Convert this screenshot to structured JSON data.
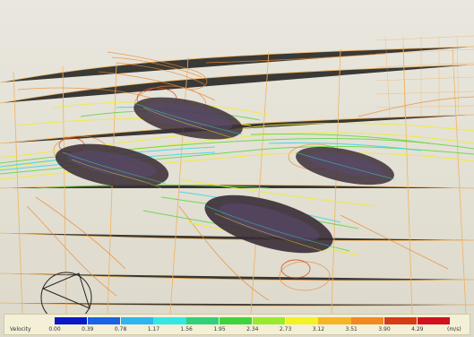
{
  "legend": {
    "title": "Velocity",
    "unit": "(m/s)",
    "ticks": [
      "0.00",
      "0.39",
      "0.78",
      "1.17",
      "1.56",
      "1.95",
      "2.34",
      "2.73",
      "3.12",
      "3.51",
      "3.90",
      "4.29"
    ],
    "colors": [
      "#0a18c8",
      "#1a63e6",
      "#2fb5ef",
      "#35e7e2",
      "#31d07a",
      "#3fd43a",
      "#97ea2f",
      "#f2f224",
      "#f5b526",
      "#ee8a21",
      "#d53b15",
      "#d3101d"
    ]
  },
  "scene": {
    "description_icon": "view-orientation-gizmo-icon"
  }
}
